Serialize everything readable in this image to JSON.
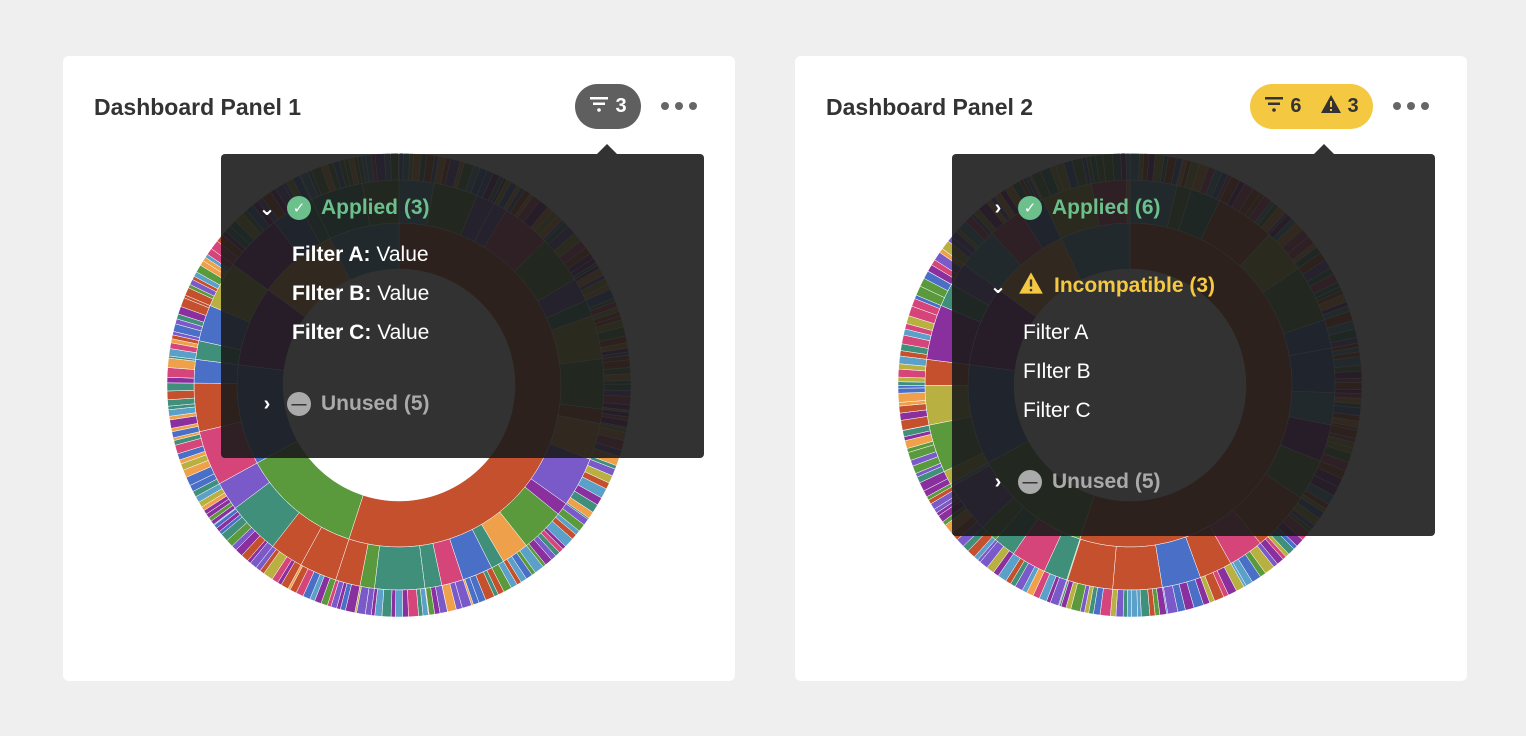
{
  "panels": [
    {
      "title": "Dashboard Panel 1",
      "badge": {
        "filter_count": "3",
        "color": "#5f5f5f"
      },
      "tooltip": {
        "applied": {
          "label": "Applied (3)",
          "expanded": true,
          "filters": [
            {
              "name": "Filter A:",
              "value": "Value"
            },
            {
              "name": "FIlter B:",
              "value": "Value"
            },
            {
              "name": "Filter C:",
              "value": "Value"
            }
          ]
        },
        "unused": {
          "label": "Unused (5)",
          "expanded": false
        }
      }
    },
    {
      "title": "Dashboard Panel 2",
      "badge": {
        "filter_count": "6",
        "warning_count": "3",
        "color": "#f5c842"
      },
      "tooltip": {
        "applied": {
          "label": "Applied (6)",
          "expanded": false
        },
        "incompatible": {
          "label": "Incompatible (3)",
          "expanded": true,
          "filters": [
            "Filter A",
            "FIlter B",
            "Filter C"
          ]
        },
        "unused": {
          "label": "Unused (5)",
          "expanded": false
        }
      }
    }
  ],
  "colors": {
    "applied": "#6cc08b",
    "incompatible": "#f5c842",
    "unused": "#aaaaaa",
    "sunburst_palette": [
      "#c4502e",
      "#5a9a3c",
      "#4a6fc7",
      "#8a2f9e",
      "#eea04a",
      "#5aa0c8",
      "#d6457a",
      "#3f8f7a",
      "#b8b040",
      "#7a5ac8"
    ]
  }
}
